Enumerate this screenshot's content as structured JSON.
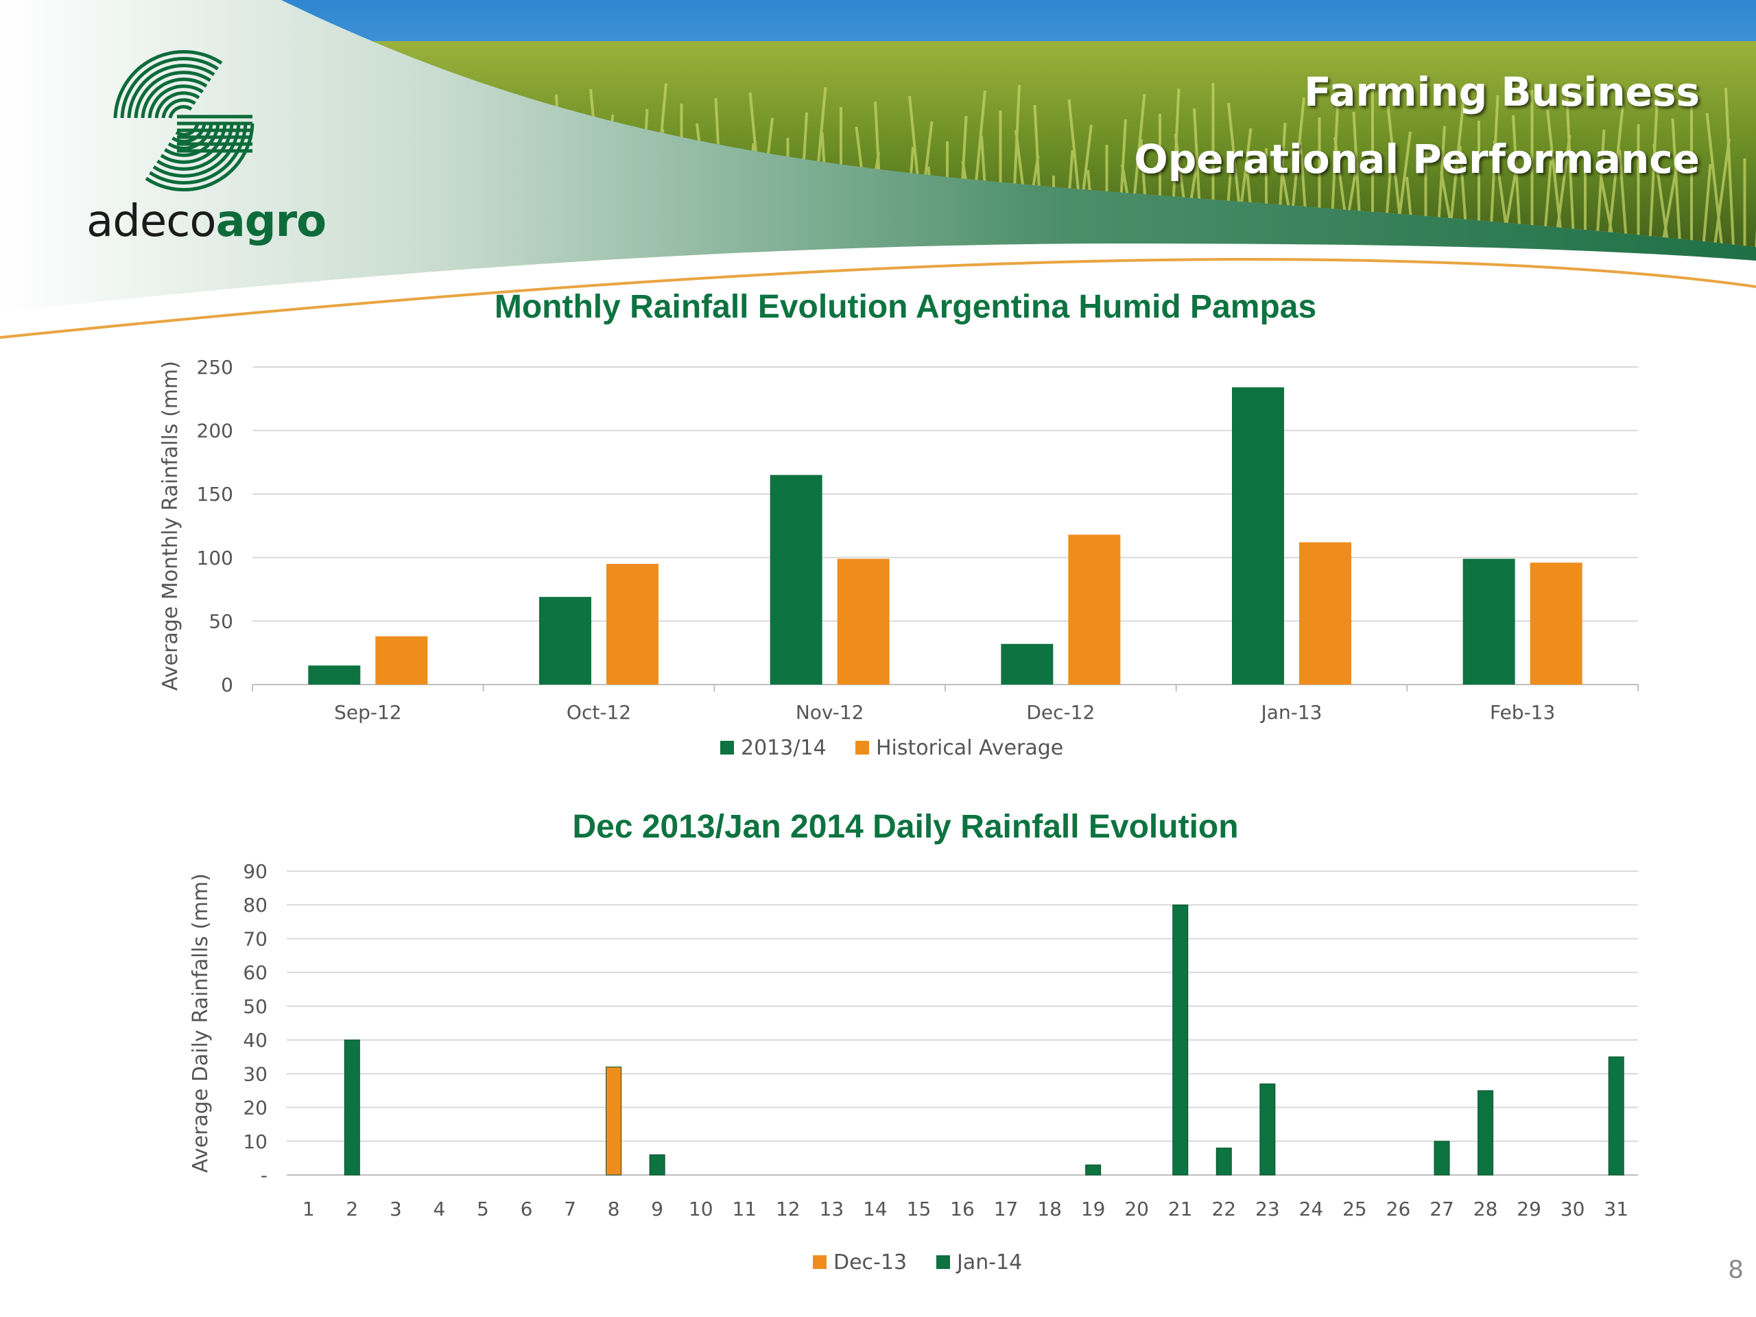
{
  "header": {
    "title_line1": "Farming Business",
    "title_line2": "Operational Performance",
    "logo_text_a": "adeco",
    "logo_text_b": "agro",
    "colors": {
      "green": "#0d6b3a",
      "orange": "#ef8d1c"
    }
  },
  "page_number": "8",
  "chart_data": [
    {
      "type": "bar",
      "title": "Monthly Rainfall Evolution Argentina Humid Pampas",
      "ylabel": "Average Monthly Rainfalls (mm)",
      "xlabel": "",
      "ylim": [
        0,
        250
      ],
      "yticks": [
        0,
        50,
        100,
        150,
        200,
        250
      ],
      "ytick_labels": [
        "0",
        "50",
        "100",
        "150",
        "200",
        "250"
      ],
      "categories": [
        "Sep-12",
        "Oct-12",
        "Nov-12",
        "Dec-12",
        "Jan-13",
        "Feb-13"
      ],
      "series": [
        {
          "name": "2013/14",
          "color": "#0d7340",
          "values": [
            15,
            69,
            165,
            32,
            234,
            99
          ]
        },
        {
          "name": "Historical Average",
          "color": "#ef8d1c",
          "values": [
            38,
            95,
            99,
            118,
            112,
            96
          ]
        }
      ],
      "grid": true,
      "legend": "bottom"
    },
    {
      "type": "bar",
      "title": "Dec 2013/Jan 2014 Daily Rainfall Evolution",
      "ylabel": "Average Daily Rainfalls (mm)",
      "xlabel": "",
      "ylim": [
        0,
        90
      ],
      "yticks": [
        0,
        10,
        20,
        30,
        40,
        50,
        60,
        70,
        80,
        90
      ],
      "ytick_labels": [
        "-",
        "10",
        "20",
        "30",
        "40",
        "50",
        "60",
        "70",
        "80",
        "90"
      ],
      "categories": [
        "1",
        "2",
        "3",
        "4",
        "5",
        "6",
        "7",
        "8",
        "9",
        "10",
        "11",
        "12",
        "13",
        "14",
        "15",
        "16",
        "17",
        "18",
        "19",
        "20",
        "21",
        "22",
        "23",
        "24",
        "25",
        "26",
        "27",
        "28",
        "29",
        "30",
        "31"
      ],
      "series": [
        {
          "name": "Dec-13",
          "color": "#ef8d1c",
          "values": [
            0,
            0,
            0,
            0,
            0,
            0,
            0,
            32,
            0,
            0,
            0,
            0,
            0,
            0,
            0,
            0,
            0,
            0,
            0,
            0,
            0,
            0,
            0,
            0,
            0,
            0,
            0,
            0,
            0,
            0,
            0
          ]
        },
        {
          "name": "Jan-14",
          "color": "#0d7340",
          "values": [
            0,
            40,
            0,
            0,
            0,
            0,
            0,
            0,
            6,
            0,
            0,
            0,
            0,
            0,
            0,
            0,
            0,
            0,
            3,
            0,
            80,
            8,
            27,
            0,
            0,
            0,
            10,
            25,
            0,
            0,
            35
          ]
        }
      ],
      "grid": true,
      "legend": "bottom"
    }
  ]
}
